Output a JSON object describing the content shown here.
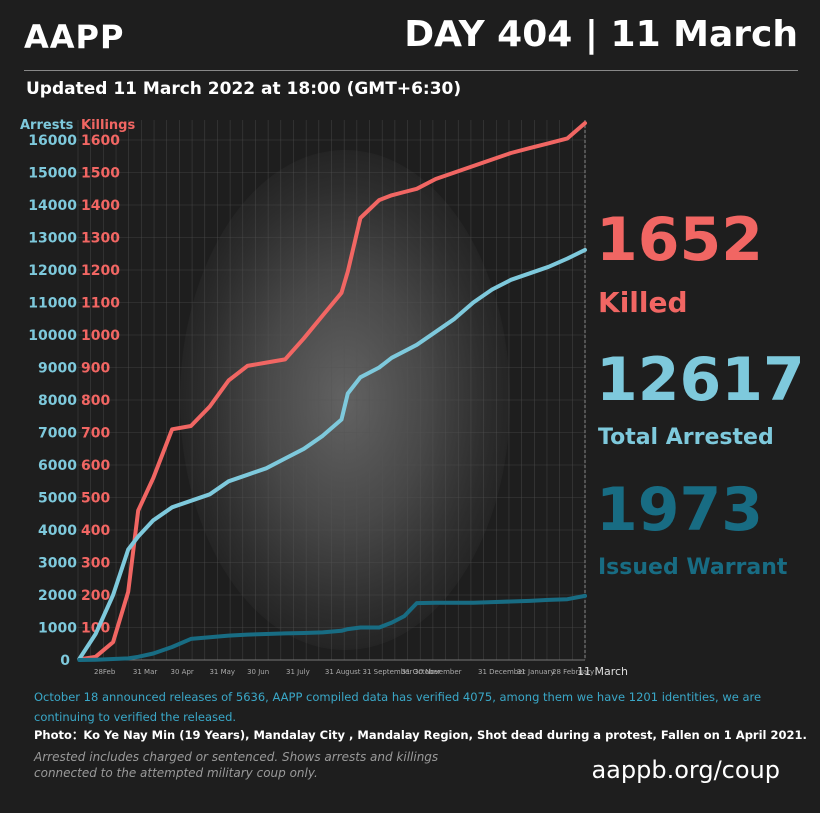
{
  "header": {
    "brand": "AAPP",
    "day_title": "DAY 404 | 11 March",
    "updated": "Updated  11 March 2022 at 18:00 (GMT+6:30)"
  },
  "stats": {
    "killed_number": "1652",
    "killed_label": "Killed",
    "arrested_number": "12617",
    "arrested_label": "Total Arrested",
    "warrant_number": "1973",
    "warrant_label": "Issued Warrant",
    "colors": {
      "killed": "#f16663",
      "arrested": "#7ec9dc",
      "warrant": "#186c83"
    }
  },
  "footer": {
    "note": "October 18 announced releases of 5636, AAPP compiled data has verified 4075, among them we have 1201 identities, we are continuing to verified the released.",
    "photo_caption": "Photo：Ko Ye Nay Min (19 Years), Mandalay City , Mandalay Region, Shot dead during a protest, Fallen on 1 April 2021.",
    "disclaimer": "Arrested includes charged or sentenced. Shows arrests and killings connected to the attempted military coup only.",
    "url": "aappb.org/coup"
  },
  "chart_data": {
    "type": "line",
    "arrests_axis": {
      "label": "Arrests",
      "ylim": [
        0,
        16000
      ],
      "ticks": [
        0,
        1000,
        2000,
        3000,
        4000,
        5000,
        6000,
        7000,
        8000,
        9000,
        10000,
        11000,
        12000,
        13000,
        14000,
        15000,
        16000
      ],
      "color": "#7ec9dc"
    },
    "killings_axis": {
      "label": "Killings",
      "ylim": [
        0,
        1600
      ],
      "ticks": [
        100,
        200,
        300,
        400,
        500,
        600,
        700,
        800,
        900,
        1000,
        1100,
        1200,
        1300,
        1400,
        1500,
        1600
      ],
      "color": "#f16663"
    },
    "x_tick_labels": [
      "28Feb",
      "31 Mar",
      "30 Apr",
      "31 May",
      "30 Jun",
      "31 July",
      "31 August",
      "31 September",
      "31 October",
      "30 November",
      "31 December",
      "31 January",
      "28 February",
      "11 March"
    ],
    "x": [
      1,
      14,
      28,
      40,
      48,
      60,
      75,
      90,
      105,
      120,
      135,
      150,
      165,
      180,
      195,
      210,
      215,
      225,
      240,
      250,
      260,
      270,
      285,
      300,
      315,
      330,
      345,
      360,
      375,
      390,
      404
    ],
    "grid": true,
    "series": [
      {
        "name": "Killings",
        "axis": "killings",
        "color": "#f16663",
        "values": [
          2,
          10,
          55,
          210,
          460,
          560,
          710,
          720,
          780,
          860,
          905,
          915,
          925,
          990,
          1060,
          1130,
          1195,
          1360,
          1415,
          1430,
          1440,
          1450,
          1480,
          1500,
          1520,
          1540,
          1560,
          1575,
          1590,
          1605,
          1652
        ]
      },
      {
        "name": "Arrests",
        "axis": "arrests",
        "color": "#7ec9dc",
        "values": [
          30,
          800,
          2000,
          3400,
          3800,
          4300,
          4700,
          4900,
          5100,
          5500,
          5700,
          5900,
          6200,
          6500,
          6900,
          7400,
          8200,
          8700,
          9000,
          9300,
          9500,
          9700,
          10100,
          10500,
          11000,
          11400,
          11700,
          11900,
          12100,
          12350,
          12617
        ]
      },
      {
        "name": "Issued Warrant",
        "axis": "arrests",
        "color": "#186c83",
        "values": [
          0,
          10,
          30,
          50,
          100,
          200,
          400,
          650,
          700,
          750,
          780,
          800,
          820,
          830,
          850,
          900,
          950,
          1000,
          1000,
          1150,
          1350,
          1750,
          1760,
          1760,
          1760,
          1780,
          1800,
          1820,
          1850,
          1870,
          1973
        ]
      }
    ]
  }
}
